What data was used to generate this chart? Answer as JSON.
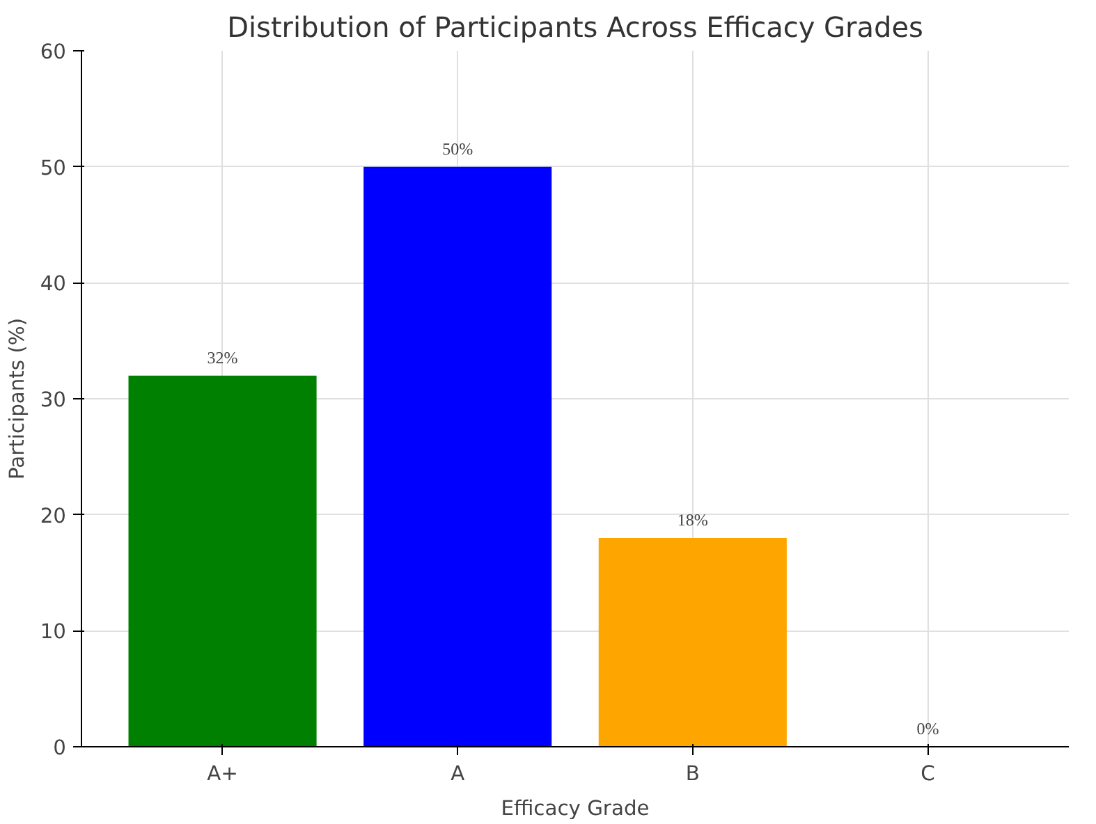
{
  "chart_data": {
    "type": "bar",
    "title": "Distribution of Participants Across Efficacy Grades",
    "xlabel": "Efficacy Grade",
    "ylabel": "Participants (%)",
    "categories": [
      "A+",
      "A",
      "B",
      "C"
    ],
    "values": [
      32,
      50,
      18,
      0
    ],
    "colors": [
      "#008000",
      "#0000ff",
      "#ffa500",
      "#808080"
    ],
    "value_labels": [
      "32%",
      "50%",
      "18%",
      "0%"
    ],
    "ylim": [
      0,
      60
    ],
    "yticks": [
      0,
      10,
      20,
      30,
      40,
      50,
      60
    ],
    "grid": true
  }
}
